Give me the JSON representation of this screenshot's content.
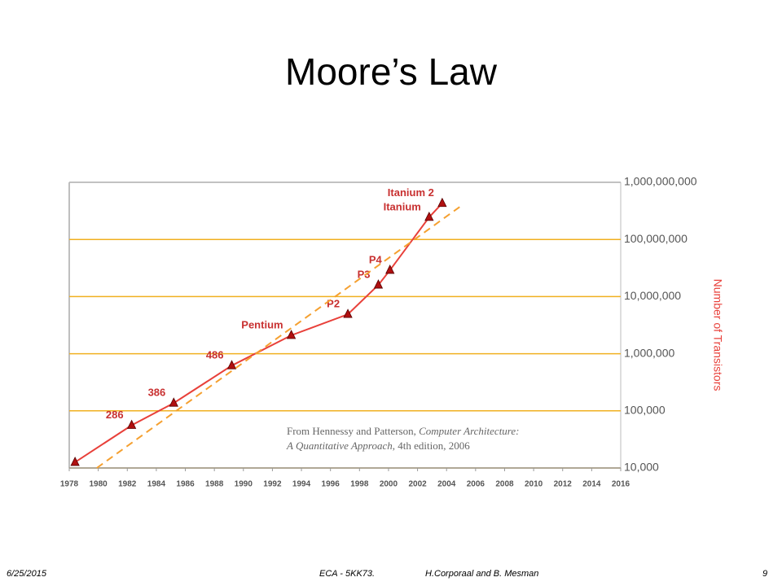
{
  "slide": {
    "title": "Moore’s Law",
    "footer_date": "6/25/2015",
    "footer_course": "ECA - 5KK73.",
    "footer_authors": "H.Corporaal  and B. Mesman",
    "page_number": "9"
  },
  "chart_data": {
    "type": "line",
    "y_label": "Number of Transistors",
    "annotation": [
      "From Hennessy and Patterson, ",
      "Computer Architecture:",
      "A Quantitative Approach",
      ", 4th edition, 2006"
    ],
    "xlim": [
      1978,
      2016
    ],
    "xticks": [
      1978,
      1980,
      1982,
      1984,
      1986,
      1988,
      1990,
      1992,
      1994,
      1996,
      1998,
      2000,
      2002,
      2004,
      2006,
      2008,
      2010,
      2012,
      2014,
      2016
    ],
    "ylim": [
      10000,
      1000000000
    ],
    "yticks": [
      {
        "value": 10000,
        "label": "10,000"
      },
      {
        "value": 100000,
        "label": "100,000"
      },
      {
        "value": 1000000,
        "label": "1,000,000"
      },
      {
        "value": 10000000,
        "label": "10,000,000"
      },
      {
        "value": 100000000,
        "label": "100,000,000"
      },
      {
        "value": 1000000000,
        "label": "1,000,000,000"
      }
    ],
    "log_scale": true,
    "grid": true,
    "grid_color": "#f0b020",
    "series": [
      {
        "color": "#e8403a",
        "markers": true,
        "x": [
          1978.4,
          1982.3,
          1985.2,
          1989.2,
          1993.3,
          1997.2,
          1999.3,
          2000.1,
          2002.8,
          2003.7
        ],
        "values": [
          12600,
          56000,
          137000,
          620000,
          2100000,
          4900000,
          16000000,
          29000000,
          245000000,
          430000000
        ],
        "labels": [
          null,
          "286",
          "386",
          "486",
          "Pentium",
          "P2",
          "P3",
          "P4",
          "Itanium",
          "Itanium 2"
        ]
      },
      {
        "color": "#f5a030",
        "dashed": true,
        "x": [
          1979.9,
          2004.9
        ],
        "values": [
          10000,
          370000000
        ]
      }
    ]
  }
}
